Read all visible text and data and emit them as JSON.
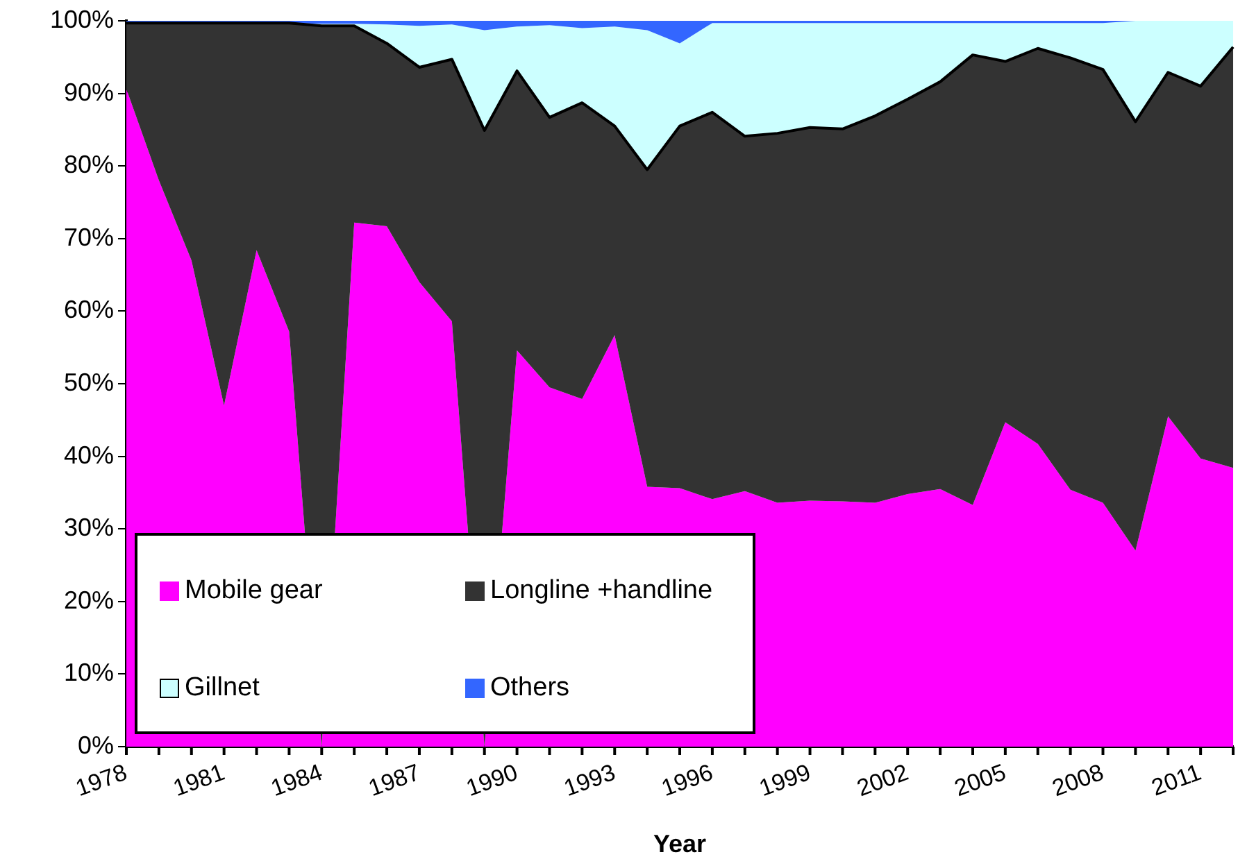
{
  "chart_data": {
    "type": "area",
    "stacked": true,
    "xlabel": "Year",
    "categories": [
      "1978",
      null,
      null,
      "1981",
      null,
      null,
      "1984",
      null,
      null,
      "1987",
      null,
      null,
      "1990",
      null,
      null,
      "1993",
      null,
      null,
      "1996",
      null,
      null,
      "1999",
      null,
      null,
      "2002",
      null,
      null,
      "2005",
      null,
      null,
      "2008",
      null,
      null,
      "2011",
      null
    ],
    "ylim": [
      0,
      100
    ],
    "yticks": [
      {
        "value": 0,
        "label": "0%"
      },
      {
        "value": 10,
        "label": "10%"
      },
      {
        "value": 20,
        "label": "20%"
      },
      {
        "value": 30,
        "label": "30%"
      },
      {
        "value": 40,
        "label": "40%"
      },
      {
        "value": 50,
        "label": "50%"
      },
      {
        "value": 60,
        "label": "60%"
      },
      {
        "value": 70,
        "label": "70%"
      },
      {
        "value": 80,
        "label": "80%"
      },
      {
        "value": 90,
        "label": "90%"
      },
      {
        "value": 100,
        "label": "100%"
      }
    ],
    "grid": false,
    "legend": "bottom left",
    "series": [
      {
        "name": "Mobile gear",
        "color": "#ff00ff",
        "values": [
          90.6,
          78,
          67,
          47,
          68.4,
          57.2,
          null,
          72.2,
          71.7,
          64,
          58.6,
          null,
          54.6,
          49.5,
          47.9,
          56.7,
          35.8,
          35.6,
          34.1,
          35.2,
          33.6,
          33.9,
          33.8,
          33.6,
          34.8,
          35.5,
          33.3,
          44.7,
          41.7,
          35.4,
          33.6,
          27,
          45.5,
          39.7,
          38.4
        ]
      },
      {
        "name": "Longline +handline",
        "color": "#333333",
        "values": [
          9.1,
          21.7,
          32.7,
          52.7,
          31.3,
          42.5,
          99.3,
          27.1,
          25.2,
          29.6,
          36.1,
          84.9,
          38.5,
          37.2,
          40.8,
          28.8,
          43.7,
          49.9,
          53.3,
          48.9,
          50.9,
          51.4,
          51.3,
          53.3,
          54.4,
          56.1,
          62,
          49.7,
          54.5,
          59.5,
          59.7,
          59.1,
          47.4,
          51.3,
          58
        ]
      },
      {
        "name": "Gillnet",
        "color": "#ccffff",
        "values": [
          0,
          0,
          0,
          0,
          0,
          0,
          0.3,
          0.3,
          2.6,
          5.7,
          4.8,
          13.8,
          6.1,
          12.7,
          10.3,
          13.7,
          19.2,
          11.4,
          12.3,
          15.6,
          15.2,
          14.4,
          14.6,
          12.8,
          10.5,
          8.1,
          4.4,
          5.3,
          3.5,
          4.8,
          6.4,
          13.9,
          7.1,
          9,
          3.6
        ]
      },
      {
        "name": "Others",
        "color": "#3366ff",
        "values": [
          0.3,
          0.3,
          0.3,
          0.3,
          0.3,
          0.3,
          0.4,
          0.4,
          0.5,
          0.7,
          0.5,
          1.3,
          0.8,
          0.6,
          1,
          0.8,
          1.3,
          3.1,
          0.3,
          0.3,
          0.3,
          0.3,
          0.3,
          0.3,
          0.3,
          0.3,
          0.3,
          0.3,
          0.3,
          0.3,
          0.3,
          0,
          0,
          0,
          0
        ]
      }
    ]
  }
}
